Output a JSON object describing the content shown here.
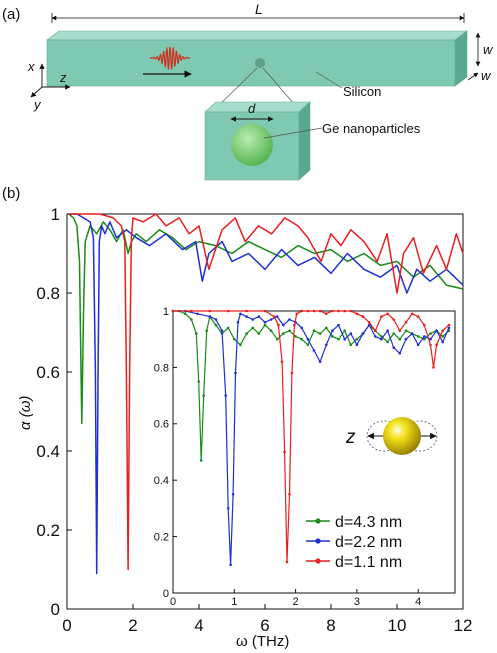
{
  "panel_a": {
    "label": "(a)",
    "length_label": "L",
    "width_label_1": "w",
    "width_label_2": "w",
    "axis_x": "x",
    "axis_y": "y",
    "axis_z": "z",
    "zoom_label": "d",
    "material_label": "Silicon",
    "particle_label": "Ge nanoparticles",
    "colors": {
      "bar": "#7fc9b2",
      "bar_top": "#a6dccb",
      "bar_side": "#5aa892",
      "wave": "#d0301e",
      "particle": "#7fd17a"
    }
  },
  "chart_data": [
    {
      "type": "line",
      "panel_label": "(b)",
      "xlabel": "ω (THz)",
      "ylabel": "α (ω)",
      "xlim": [
        0,
        12
      ],
      "ylim": [
        0,
        1
      ],
      "xticks": [
        "0",
        "2",
        "4",
        "6",
        "8",
        "10",
        "12"
      ],
      "yticks": [
        "0",
        "0.2",
        "0.4",
        "0.6",
        "0.8",
        "1"
      ],
      "grid": false,
      "series": [
        {
          "color": "#1a8a1a",
          "x": [
            0.05,
            0.2,
            0.3,
            0.38,
            0.42,
            0.45,
            0.5,
            0.55,
            0.7,
            0.9,
            1.1,
            1.3,
            1.5,
            1.7,
            1.85,
            1.95,
            2.1,
            2.4,
            2.8,
            3.2,
            3.6,
            4.0,
            4.5,
            5.0,
            5.5,
            6.0,
            6.5,
            7.0,
            7.5,
            8.0,
            8.5,
            9.0,
            9.5,
            10.0,
            10.5,
            11.0,
            11.5,
            12.0
          ],
          "y": [
            1.0,
            0.99,
            0.97,
            0.88,
            0.62,
            0.47,
            0.75,
            0.93,
            0.97,
            0.95,
            0.98,
            0.96,
            0.93,
            0.96,
            0.9,
            0.93,
            0.95,
            0.93,
            0.96,
            0.94,
            0.91,
            0.93,
            0.92,
            0.9,
            0.93,
            0.91,
            0.89,
            0.92,
            0.9,
            0.91,
            0.88,
            0.9,
            0.87,
            0.88,
            0.84,
            0.87,
            0.82,
            0.81
          ]
        },
        {
          "color": "#1f2fd6",
          "x": [
            0.05,
            0.3,
            0.5,
            0.7,
            0.8,
            0.86,
            0.9,
            0.94,
            0.98,
            1.05,
            1.15,
            1.3,
            1.5,
            1.8,
            2.1,
            2.5,
            3.0,
            3.5,
            3.9,
            4.1,
            4.3,
            4.7,
            5.0,
            5.5,
            6.0,
            6.5,
            7.0,
            7.5,
            8.0,
            8.5,
            9.0,
            9.5,
            10.0,
            10.3,
            10.6,
            11.0,
            11.5,
            12.0
          ],
          "y": [
            1.0,
            1.0,
            0.99,
            0.98,
            0.94,
            0.6,
            0.09,
            0.58,
            0.93,
            0.97,
            0.95,
            0.98,
            0.94,
            0.96,
            0.94,
            0.92,
            0.95,
            0.91,
            0.93,
            0.83,
            0.9,
            0.93,
            0.88,
            0.9,
            0.86,
            0.91,
            0.87,
            0.89,
            0.85,
            0.9,
            0.86,
            0.84,
            0.87,
            0.8,
            0.86,
            0.83,
            0.86,
            0.82
          ]
        },
        {
          "color": "#e81f1f",
          "x": [
            0.05,
            0.5,
            1.0,
            1.4,
            1.65,
            1.75,
            1.8,
            1.85,
            1.9,
            1.95,
            2.0,
            2.3,
            2.7,
            3.0,
            3.4,
            3.7,
            4.0,
            4.3,
            4.7,
            5.1,
            5.4,
            5.8,
            6.2,
            6.6,
            7.0,
            7.3,
            7.7,
            8.0,
            8.3,
            8.6,
            9.0,
            9.4,
            9.7,
            10.0,
            10.2,
            10.5,
            10.8,
            11.2,
            11.5,
            11.8,
            12.0
          ],
          "y": [
            1.0,
            1.0,
            1.0,
            0.99,
            0.97,
            0.93,
            0.6,
            0.1,
            0.62,
            0.94,
            0.99,
            0.98,
            1.0,
            0.97,
            0.99,
            0.95,
            0.97,
            0.86,
            0.96,
            0.99,
            0.93,
            0.97,
            0.95,
            0.99,
            0.97,
            0.94,
            0.88,
            0.95,
            0.92,
            0.96,
            0.93,
            0.88,
            0.95,
            0.8,
            0.9,
            0.94,
            0.85,
            0.92,
            0.86,
            0.95,
            0.9
          ]
        }
      ]
    },
    {
      "type": "line",
      "inset": true,
      "xlim": [
        0,
        4.6
      ],
      "ylim": [
        0,
        1
      ],
      "xticks": [
        "0",
        "1",
        "2",
        "3",
        "4"
      ],
      "yticks": [
        "0",
        "0.2",
        "0.4",
        "0.6",
        "0.8",
        "1"
      ],
      "legend_position": "bottom-right",
      "series": [
        {
          "name": "d=4.3 nm",
          "color": "#1a8a1a",
          "markers": true,
          "x": [
            0.0,
            0.1,
            0.2,
            0.3,
            0.38,
            0.42,
            0.46,
            0.5,
            0.55,
            0.6,
            0.7,
            0.8,
            0.9,
            1.0,
            1.1,
            1.2,
            1.3,
            1.4,
            1.5,
            1.6,
            1.7,
            1.8,
            1.9,
            2.0,
            2.1,
            2.2,
            2.3,
            2.4,
            2.5,
            2.6,
            2.7,
            2.8,
            2.9,
            3.0,
            3.1,
            3.2,
            3.3,
            3.4,
            3.5,
            3.6,
            3.7,
            3.8,
            3.9,
            4.0,
            4.1,
            4.2,
            4.3,
            4.4,
            4.5
          ],
          "y": [
            1.0,
            1.0,
            0.99,
            0.97,
            0.92,
            0.75,
            0.47,
            0.7,
            0.93,
            0.98,
            0.95,
            0.92,
            0.94,
            0.9,
            0.88,
            0.92,
            0.94,
            0.92,
            0.95,
            0.93,
            0.9,
            0.92,
            0.93,
            0.91,
            0.9,
            0.88,
            0.93,
            0.92,
            0.94,
            0.91,
            0.9,
            0.93,
            0.88,
            0.9,
            0.92,
            0.95,
            0.93,
            0.91,
            0.89,
            0.92,
            0.9,
            0.93,
            0.92,
            0.91,
            0.9,
            0.92,
            0.93,
            0.91,
            0.93
          ]
        },
        {
          "name": "d=2.2 nm",
          "color": "#1f2fd6",
          "markers": true,
          "x": [
            0.0,
            0.2,
            0.4,
            0.6,
            0.7,
            0.8,
            0.86,
            0.9,
            0.94,
            0.98,
            1.02,
            1.06,
            1.1,
            1.2,
            1.3,
            1.4,
            1.5,
            1.6,
            1.7,
            1.8,
            1.9,
            2.0,
            2.1,
            2.2,
            2.3,
            2.4,
            2.5,
            2.6,
            2.7,
            2.8,
            2.9,
            3.0,
            3.1,
            3.2,
            3.3,
            3.4,
            3.5,
            3.6,
            3.7,
            3.8,
            3.9,
            4.0,
            4.1,
            4.2,
            4.3,
            4.4,
            4.5
          ],
          "y": [
            1.0,
            1.0,
            0.99,
            0.98,
            0.97,
            0.93,
            0.7,
            0.3,
            0.1,
            0.35,
            0.78,
            0.96,
            0.99,
            0.98,
            0.97,
            0.98,
            0.96,
            0.97,
            0.98,
            0.95,
            0.97,
            0.96,
            0.94,
            0.9,
            0.86,
            0.82,
            0.88,
            0.93,
            0.95,
            0.9,
            0.92,
            0.88,
            0.92,
            0.95,
            0.91,
            0.9,
            0.93,
            0.87,
            0.85,
            0.9,
            0.92,
            0.88,
            0.91,
            0.9,
            0.93,
            0.89,
            0.94
          ]
        },
        {
          "name": "d=1.1 nm",
          "color": "#e81f1f",
          "markers": true,
          "x": [
            0.0,
            0.3,
            0.6,
            0.9,
            1.2,
            1.5,
            1.65,
            1.72,
            1.78,
            1.82,
            1.86,
            1.9,
            1.94,
            1.98,
            2.02,
            2.1,
            2.2,
            2.3,
            2.4,
            2.5,
            2.6,
            2.7,
            2.8,
            2.9,
            3.0,
            3.1,
            3.2,
            3.3,
            3.4,
            3.5,
            3.6,
            3.7,
            3.8,
            3.9,
            4.0,
            4.1,
            4.2,
            4.25,
            4.3,
            4.4,
            4.5
          ],
          "y": [
            1.0,
            1.0,
            1.0,
            1.0,
            1.0,
            1.0,
            0.98,
            0.95,
            0.82,
            0.5,
            0.11,
            0.35,
            0.78,
            0.95,
            0.99,
            1.0,
            1.0,
            1.0,
            1.0,
            0.99,
            1.0,
            1.0,
            1.0,
            1.0,
            0.99,
            0.98,
            0.96,
            0.93,
            0.98,
            0.99,
            0.97,
            0.93,
            0.96,
            0.99,
            0.98,
            0.95,
            0.88,
            0.8,
            0.88,
            0.93,
            0.95
          ]
        }
      ],
      "particle_axis_label": "z"
    }
  ]
}
